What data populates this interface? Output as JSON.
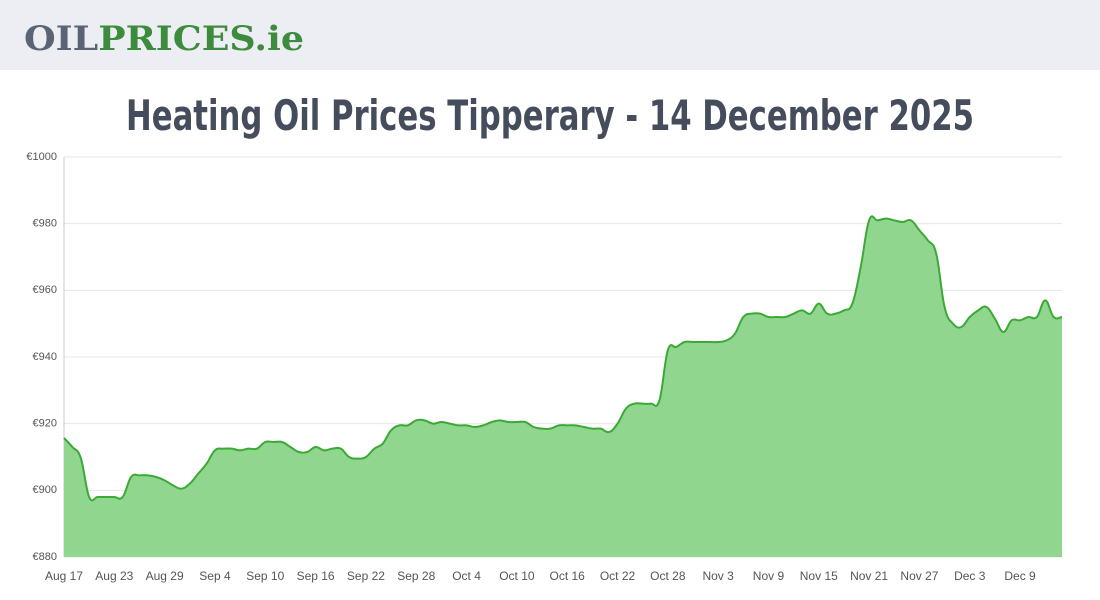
{
  "header": {
    "logo": [
      "OIL",
      "PRICES.ie"
    ]
  },
  "chart_data": {
    "type": "area",
    "title": "Heating Oil Prices Tipperary - 14 December 2025",
    "categories": [
      "Aug 17",
      null,
      null,
      null,
      null,
      null,
      "Aug 23",
      null,
      null,
      null,
      null,
      null,
      "Aug 29",
      null,
      null,
      null,
      null,
      null,
      "Sep 4",
      null,
      null,
      null,
      null,
      null,
      "Sep 10",
      null,
      null,
      null,
      null,
      null,
      "Sep 16",
      null,
      null,
      null,
      null,
      null,
      "Sep 22",
      null,
      null,
      null,
      null,
      null,
      "Sep 28",
      null,
      null,
      null,
      null,
      null,
      "Oct 4",
      null,
      null,
      null,
      null,
      null,
      "Oct 10",
      null,
      null,
      null,
      null,
      null,
      "Oct 16",
      null,
      null,
      null,
      null,
      null,
      "Oct 22",
      null,
      null,
      null,
      null,
      null,
      "Oct 28",
      null,
      null,
      null,
      null,
      null,
      "Nov 3",
      null,
      null,
      null,
      null,
      null,
      "Nov 9",
      null,
      null,
      null,
      null,
      null,
      "Nov 15",
      null,
      null,
      null,
      null,
      null,
      "Nov 21",
      null,
      null,
      null,
      null,
      null,
      "Nov 27",
      null,
      null,
      null,
      null,
      null,
      "Dec 3",
      null,
      null,
      null,
      null,
      null,
      "Dec 9",
      null,
      null,
      null,
      null,
      null
    ],
    "values": [
      915.7,
      913,
      909.7,
      898,
      898,
      898,
      898,
      898,
      904,
      904.5,
      904.5,
      904,
      903,
      901.5,
      900.5,
      902,
      905,
      908,
      912,
      912.5,
      912.5,
      912,
      912.5,
      912.5,
      914.5,
      914.5,
      914.5,
      913,
      911.5,
      911.5,
      913,
      912,
      912.5,
      912.5,
      910,
      909.5,
      910,
      912.5,
      914,
      918,
      919.5,
      919.5,
      921,
      921,
      920,
      920.5,
      920,
      919.5,
      919.5,
      919,
      919.5,
      920.5,
      921,
      920.5,
      920.5,
      920.5,
      919,
      918.5,
      918.5,
      919.5,
      919.5,
      919.5,
      919,
      918.5,
      918.5,
      917.5,
      920,
      924.5,
      926,
      926,
      926,
      927,
      942,
      943,
      944.5,
      944.5,
      944.5,
      944.5,
      944.5,
      945,
      947,
      952,
      953,
      953,
      952,
      952,
      952,
      953,
      954,
      953,
      956,
      953,
      953,
      954,
      956,
      967,
      981,
      981,
      981.5,
      981,
      980.5,
      981,
      978,
      975,
      971,
      955,
      950,
      949,
      952,
      954,
      955,
      951.5,
      947.5,
      951,
      951,
      952,
      952,
      957,
      952,
      952
    ],
    "color": "#3aaa35",
    "fill_color": "#90d68f",
    "ylim": [
      880,
      1000
    ],
    "yticks": [
      {
        "value": 880,
        "label": "€880"
      },
      {
        "value": 900,
        "label": "€900"
      },
      {
        "value": 920,
        "label": "€920"
      },
      {
        "value": 940,
        "label": "€940"
      },
      {
        "value": 960,
        "label": "€960"
      },
      {
        "value": 980,
        "label": "€980"
      },
      {
        "value": 1000,
        "label": "€1000"
      }
    ],
    "grid": true
  }
}
